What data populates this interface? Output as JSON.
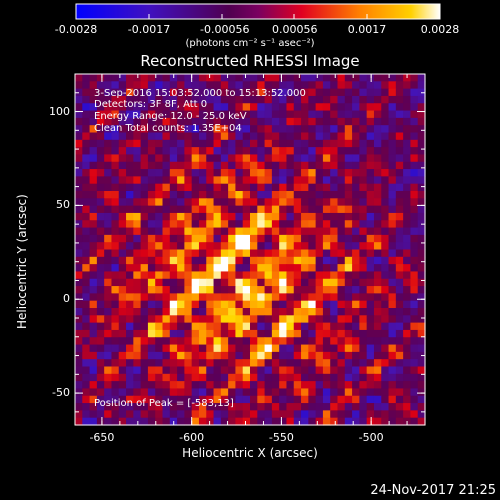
{
  "colorbar": {
    "tick_labels": [
      "-0.0028",
      "-0.0017",
      "-0.00056",
      "0.00056",
      "0.0017",
      "0.0028"
    ],
    "units_text": "(photons cm⁻² s⁻¹ asec⁻²)"
  },
  "plot": {
    "title": "Reconstructed RHESSI Image",
    "info_lines": [
      "3-Sep-2016 15:03:52.000 to 15:13:52.000",
      "Detectors: 3F 8F, Att 0",
      "Energy Range: 12.0 - 25.0 keV",
      "Clean     Total counts: 1.35E+04"
    ],
    "peak_text": "Position of Peak = [-583,13]",
    "xlabel": "Heliocentric X (arcsec)",
    "ylabel": "Heliocentric Y (arcsec)",
    "x_ticks": [
      "-650",
      "-600",
      "-550",
      "-500"
    ],
    "y_ticks": [
      "100",
      "50",
      "0",
      "-50"
    ]
  },
  "timestamp": "24-Nov-2017 21:25",
  "chart_data": {
    "type": "heatmap",
    "title": "Reconstructed RHESSI Image",
    "xlabel": "Heliocentric X (arcsec)",
    "ylabel": "Heliocentric Y (arcsec)",
    "xlim": [
      -665,
      -470
    ],
    "ylim": [
      -67,
      120
    ],
    "colorbar_range": [
      -0.0028,
      0.0028
    ],
    "peak": [
      -583,
      13
    ],
    "colormap": [
      "#0000ff",
      "#000000",
      "#ff2000",
      "#ffff00",
      "#ffffff"
    ]
  }
}
